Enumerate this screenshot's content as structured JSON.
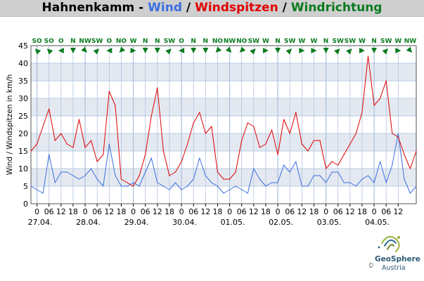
{
  "header": {
    "station": "Hahnenkamm",
    "sep1": " - ",
    "wind": "Wind",
    "sep2": " / ",
    "gusts": "Windspitzen",
    "sep3": " / ",
    "direction": "Windrichtung"
  },
  "colors": {
    "wind": "#3b6fe0",
    "gusts": "#e00000",
    "direction": "#0a7a1e",
    "band": "#e4e9f1",
    "grid": "#a9bfdc"
  },
  "chart_data": {
    "type": "line",
    "ylabel": "Wind / Windspitzen in km/h",
    "ylim": [
      0,
      45
    ],
    "yticks": [
      0,
      5,
      10,
      15,
      20,
      25,
      30,
      35,
      40,
      45
    ],
    "xlim_hours": [
      -3,
      189
    ],
    "hour_ticks": [
      "0",
      "06",
      "12",
      "18",
      "0",
      "06",
      "12",
      "18",
      "0",
      "06",
      "12",
      "18",
      "0",
      "06",
      "12",
      "18",
      "0",
      "06",
      "12",
      "18",
      "0",
      "06",
      "12",
      "18",
      "0",
      "06",
      "12",
      "18",
      "0",
      "06",
      "12"
    ],
    "day_labels": [
      "27.04.",
      "28.04.",
      "29.04.",
      "30.04.",
      "01.05.",
      "02.05.",
      "03.05.",
      "04.05."
    ],
    "direction_labels": [
      "SO",
      "SO",
      "O",
      "N",
      "NW",
      "SW",
      "O",
      "NO",
      "W",
      "N",
      "N",
      "SW",
      "O",
      "N",
      "N",
      "NO",
      "NW",
      "NO",
      "SW",
      "W",
      "N",
      "SW",
      "W",
      "W",
      "N",
      "SW",
      "SW",
      "W",
      "N",
      "SW",
      "W",
      "NW"
    ],
    "series": [
      {
        "name": "Wind",
        "color": "#3b6fe0",
        "x": [
          -3,
          0,
          3,
          6,
          9,
          12,
          15,
          18,
          21,
          24,
          27,
          30,
          33,
          36,
          39,
          42,
          45,
          48,
          51,
          54,
          57,
          60,
          63,
          66,
          69,
          72,
          75,
          78,
          81,
          84,
          87,
          90,
          93,
          96,
          99,
          102,
          105,
          108,
          111,
          114,
          117,
          120,
          123,
          126,
          129,
          132,
          135,
          138,
          141,
          144,
          147,
          150,
          153,
          156,
          159,
          162,
          165,
          168,
          171,
          174,
          177,
          180,
          183,
          186,
          189
        ],
        "values": [
          5,
          4,
          3,
          14,
          6,
          9,
          9,
          8,
          7,
          8,
          10,
          7,
          5,
          17,
          8,
          5,
          5,
          6,
          5,
          9,
          13,
          6,
          5,
          4,
          6,
          4,
          5,
          7,
          13,
          8,
          6,
          5,
          3,
          4,
          5,
          4,
          3,
          10,
          7,
          5,
          6,
          6,
          11,
          9,
          12,
          5,
          5,
          8,
          8,
          6,
          9,
          9,
          6,
          6,
          5,
          7,
          8,
          6,
          12,
          6,
          11,
          20,
          7,
          3,
          5
        ]
      },
      {
        "name": "Windspitzen",
        "color": "#e00000",
        "x": [
          -3,
          0,
          3,
          6,
          9,
          12,
          15,
          18,
          21,
          24,
          27,
          30,
          33,
          36,
          39,
          42,
          45,
          48,
          51,
          54,
          57,
          60,
          63,
          66,
          69,
          72,
          75,
          78,
          81,
          84,
          87,
          90,
          93,
          96,
          99,
          102,
          105,
          108,
          111,
          114,
          117,
          120,
          123,
          126,
          129,
          132,
          135,
          138,
          141,
          144,
          147,
          150,
          153,
          156,
          159,
          162,
          165,
          168,
          171,
          174,
          177,
          180,
          183,
          186,
          189
        ],
        "values": [
          15,
          17,
          22,
          27,
          18,
          20,
          17,
          16,
          24,
          16,
          18,
          12,
          14,
          32,
          28,
          7,
          6,
          5,
          8,
          14,
          25,
          33,
          15,
          8,
          9,
          12,
          17,
          23,
          26,
          20,
          22,
          9,
          7,
          7,
          9,
          18,
          23,
          22,
          16,
          17,
          21,
          14,
          24,
          20,
          26,
          17,
          15,
          18,
          18,
          10,
          12,
          11,
          14,
          17,
          20,
          26,
          42,
          28,
          30,
          35,
          20,
          19,
          14,
          10,
          15
        ]
      }
    ]
  },
  "logo": {
    "name": "GeoSphere",
    "sub": "Austria",
    "copyright": "©"
  }
}
